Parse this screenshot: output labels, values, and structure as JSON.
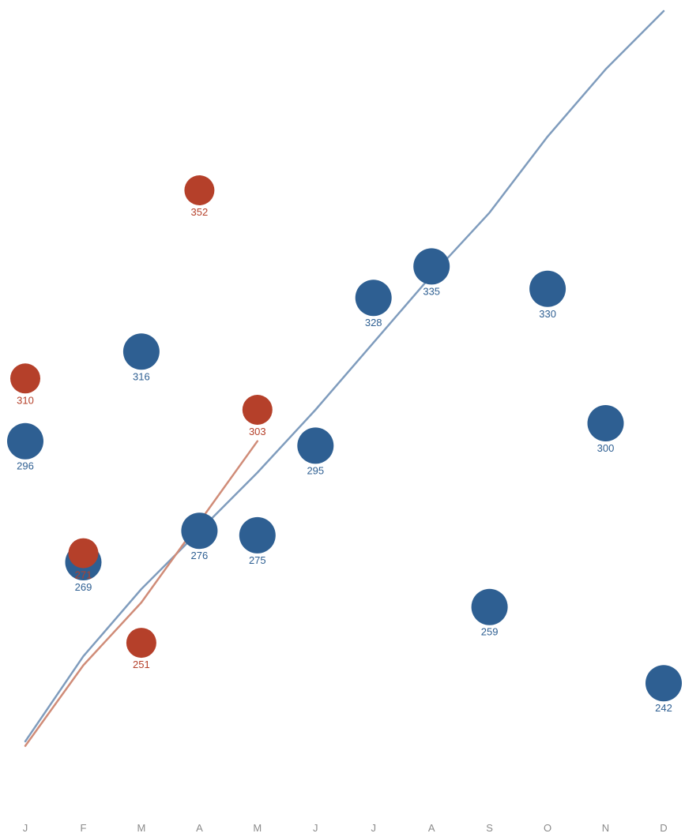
{
  "chart_data": {
    "type": "scatter",
    "categories": [
      "J",
      "F",
      "M",
      "A",
      "M",
      "J",
      "J",
      "A",
      "S",
      "O",
      "N",
      "D"
    ],
    "series": [
      {
        "color": "#2e5f92",
        "values": [
          296,
          269,
          316,
          276,
          275,
          295,
          328,
          335,
          259,
          330,
          300,
          242
        ],
        "trend": [
          229,
          248,
          263,
          276,
          289,
          303,
          318,
          333,
          347,
          364,
          379,
          392
        ]
      },
      {
        "color": "#b5402a",
        "values": [
          310,
          271,
          251,
          352,
          303,
          null,
          null,
          null,
          null,
          null,
          null,
          null
        ],
        "trend": [
          228,
          246,
          260,
          278,
          296,
          null,
          null,
          null,
          null,
          null,
          null,
          null
        ]
      }
    ],
    "series_styles": [
      {
        "trend_color": "#7f9cbd"
      },
      {
        "trend_color": "#d08c78"
      }
    ],
    "ylim": [
      220,
      392
    ],
    "grid": false,
    "legend": "none"
  }
}
